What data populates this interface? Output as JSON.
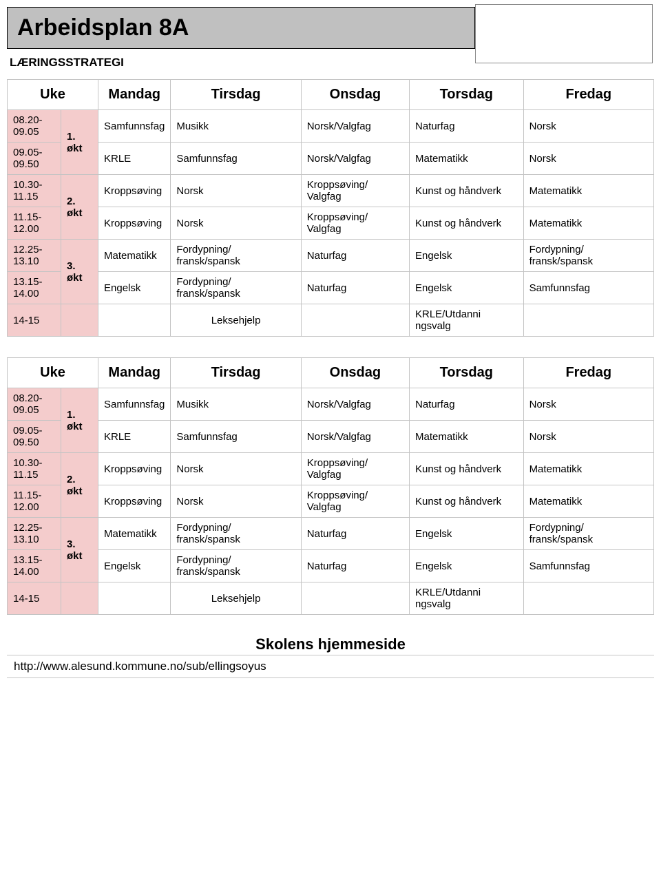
{
  "page_title": "Arbeidsplan 8A",
  "subtitle": "LÆRINGSSTRATEGI",
  "headers": {
    "uke": "Uke",
    "days": [
      "Mandag",
      "Tirsdag",
      "Onsdag",
      "Torsdag",
      "Fredag"
    ]
  },
  "timetable": {
    "sessions": [
      {
        "label": "1. økt",
        "rows": [
          {
            "time": "08.20-09.05",
            "cells": [
              "Samfunnsfag",
              "Musikk",
              "Norsk/Valgfag",
              "Naturfag",
              "Norsk"
            ]
          },
          {
            "time": "09.05-09.50",
            "cells": [
              "KRLE",
              "Samfunnsfag",
              "Norsk/Valgfag",
              "Matematikk",
              "Norsk"
            ]
          }
        ]
      },
      {
        "label": "2. økt",
        "rows": [
          {
            "time": "10.30-11.15",
            "cells": [
              "Kroppsøving",
              "Norsk",
              "Kroppsøving/ Valgfag",
              "Kunst og håndverk",
              "Matematikk"
            ]
          },
          {
            "time": "11.15-12.00",
            "cells": [
              "Kroppsøving",
              "Norsk",
              "Kroppsøving/ Valgfag",
              "Kunst og håndverk",
              "Matematikk"
            ]
          }
        ]
      },
      {
        "label": "3. økt",
        "rows": [
          {
            "time": "12.25-13.10",
            "cells": [
              "Matematikk",
              "Fordypning/ fransk/spansk",
              "Naturfag",
              "Engelsk",
              "Fordypning/ fransk/spansk"
            ]
          },
          {
            "time": "13.15-14.00",
            "cells": [
              "Engelsk",
              "Fordypning/ fransk/spansk",
              "Naturfag",
              "Engelsk",
              "Samfunnsfag"
            ]
          }
        ]
      }
    ],
    "last_row": {
      "time": "14-15",
      "cells": [
        "",
        "Leksehjelp",
        "",
        "KRLE/Utdanni ngsvalg",
        ""
      ]
    }
  },
  "footer": {
    "title": "Skolens hjemmeside",
    "url": "http://www.alesund.kommune.no/sub/ellingsoyus"
  },
  "colors": {
    "title_bg": "#c0c0c0",
    "row_highlight": "#f4cccc",
    "border": "#c4c4c4"
  }
}
